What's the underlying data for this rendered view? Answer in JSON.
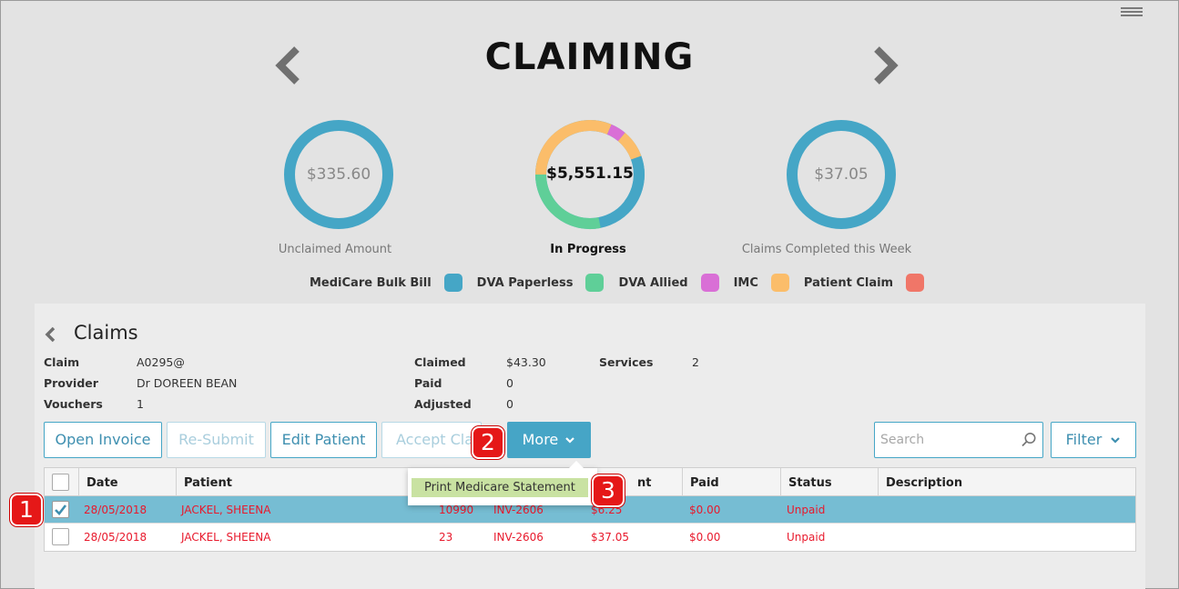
{
  "page": {
    "title": "CLAIMING"
  },
  "summary": {
    "unclaimed": {
      "value": "$335.60",
      "caption": "Unclaimed Amount"
    },
    "in_progress": {
      "value": "$5,551.15",
      "caption": "In Progress"
    },
    "completed": {
      "value": "$37.05",
      "caption": "Claims Completed this Week"
    }
  },
  "legend": [
    {
      "label": "MediCare Bulk Bill",
      "color": "#45a6c6"
    },
    {
      "label": "DVA Paperless",
      "color": "#5fcf98"
    },
    {
      "label": "DVA Allied",
      "color": "#d96fd6"
    },
    {
      "label": "IMC",
      "color": "#fbbd6a"
    },
    {
      "label": "Patient Claim",
      "color": "#f07668"
    }
  ],
  "claims": {
    "title": "Claims",
    "info": {
      "claim_label": "Claim",
      "claim_value": "A0295@",
      "provider_label": "Provider",
      "provider_value": "Dr DOREEN BEAN",
      "vouchers_label": "Vouchers",
      "vouchers_value": "1",
      "claimed_label": "Claimed",
      "claimed_value": "$43.30",
      "paid_label": "Paid",
      "paid_value": "0",
      "adjusted_label": "Adjusted",
      "adjusted_value": "0",
      "services_label": "Services",
      "services_value": "2"
    },
    "buttons": {
      "open_invoice": "Open Invoice",
      "resubmit": "Re-Submit",
      "edit_patient": "Edit Patient",
      "accept_claim": "Accept Clai",
      "more": "More",
      "filter": "Filter"
    },
    "search_placeholder": "Search",
    "dropdown_item": "Print Medicare Statement",
    "columns": {
      "date": "Date",
      "patient": "Patient",
      "amount": "nt",
      "paid": "Paid",
      "status": "Status",
      "description": "Description"
    },
    "rows": [
      {
        "date": "28/05/2018",
        "patient": "JACKEL, SHEENA",
        "item": "10990",
        "invoice": "INV-2606",
        "amount": "$6.25",
        "paid": "$0.00",
        "status": "Unpaid",
        "checked": true
      },
      {
        "date": "28/05/2018",
        "patient": "JACKEL, SHEENA",
        "item": "23",
        "invoice": "INV-2606",
        "amount": "$37.05",
        "paid": "$0.00",
        "status": "Unpaid",
        "checked": false
      }
    ]
  },
  "steps": {
    "one": "1",
    "two": "2",
    "three": "3"
  }
}
